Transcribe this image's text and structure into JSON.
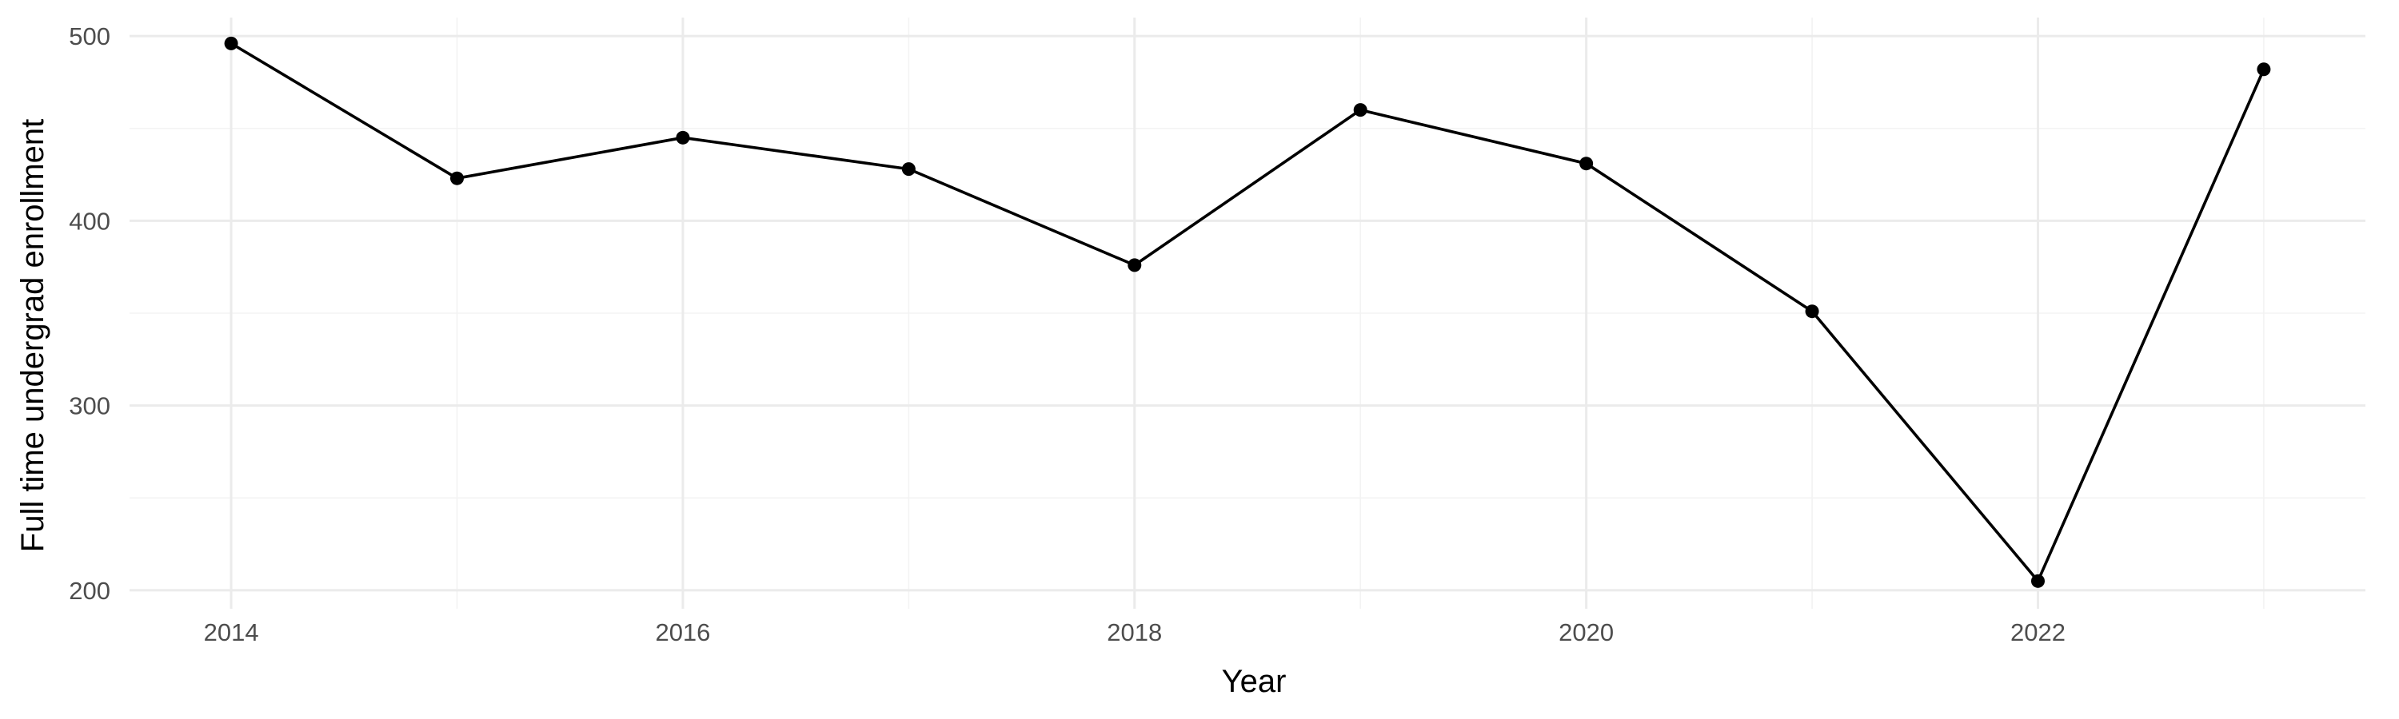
{
  "chart_data": {
    "type": "line",
    "title": "",
    "xlabel": "Year",
    "ylabel": "Full time undergrad enrollment",
    "x": [
      2014,
      2015,
      2016,
      2017,
      2018,
      2019,
      2020,
      2021,
      2022,
      2023
    ],
    "series": [
      {
        "values": [
          496,
          423,
          445,
          428,
          376,
          460,
          431,
          351,
          205,
          482
        ]
      }
    ],
    "xlim": [
      2013.55,
      2023.45
    ],
    "ylim": [
      190,
      510
    ],
    "x_ticks": [
      2014,
      2016,
      2018,
      2020,
      2022
    ],
    "x_tick_labels": [
      "2014",
      "2016",
      "2018",
      "2020",
      "2022"
    ],
    "y_ticks": [
      200,
      300,
      400,
      500
    ],
    "y_tick_labels": [
      "200",
      "300",
      "400",
      "500"
    ],
    "grid": true,
    "line_color": "#000000",
    "grid_color": "#ebebeb",
    "background_color": "#ffffff"
  }
}
